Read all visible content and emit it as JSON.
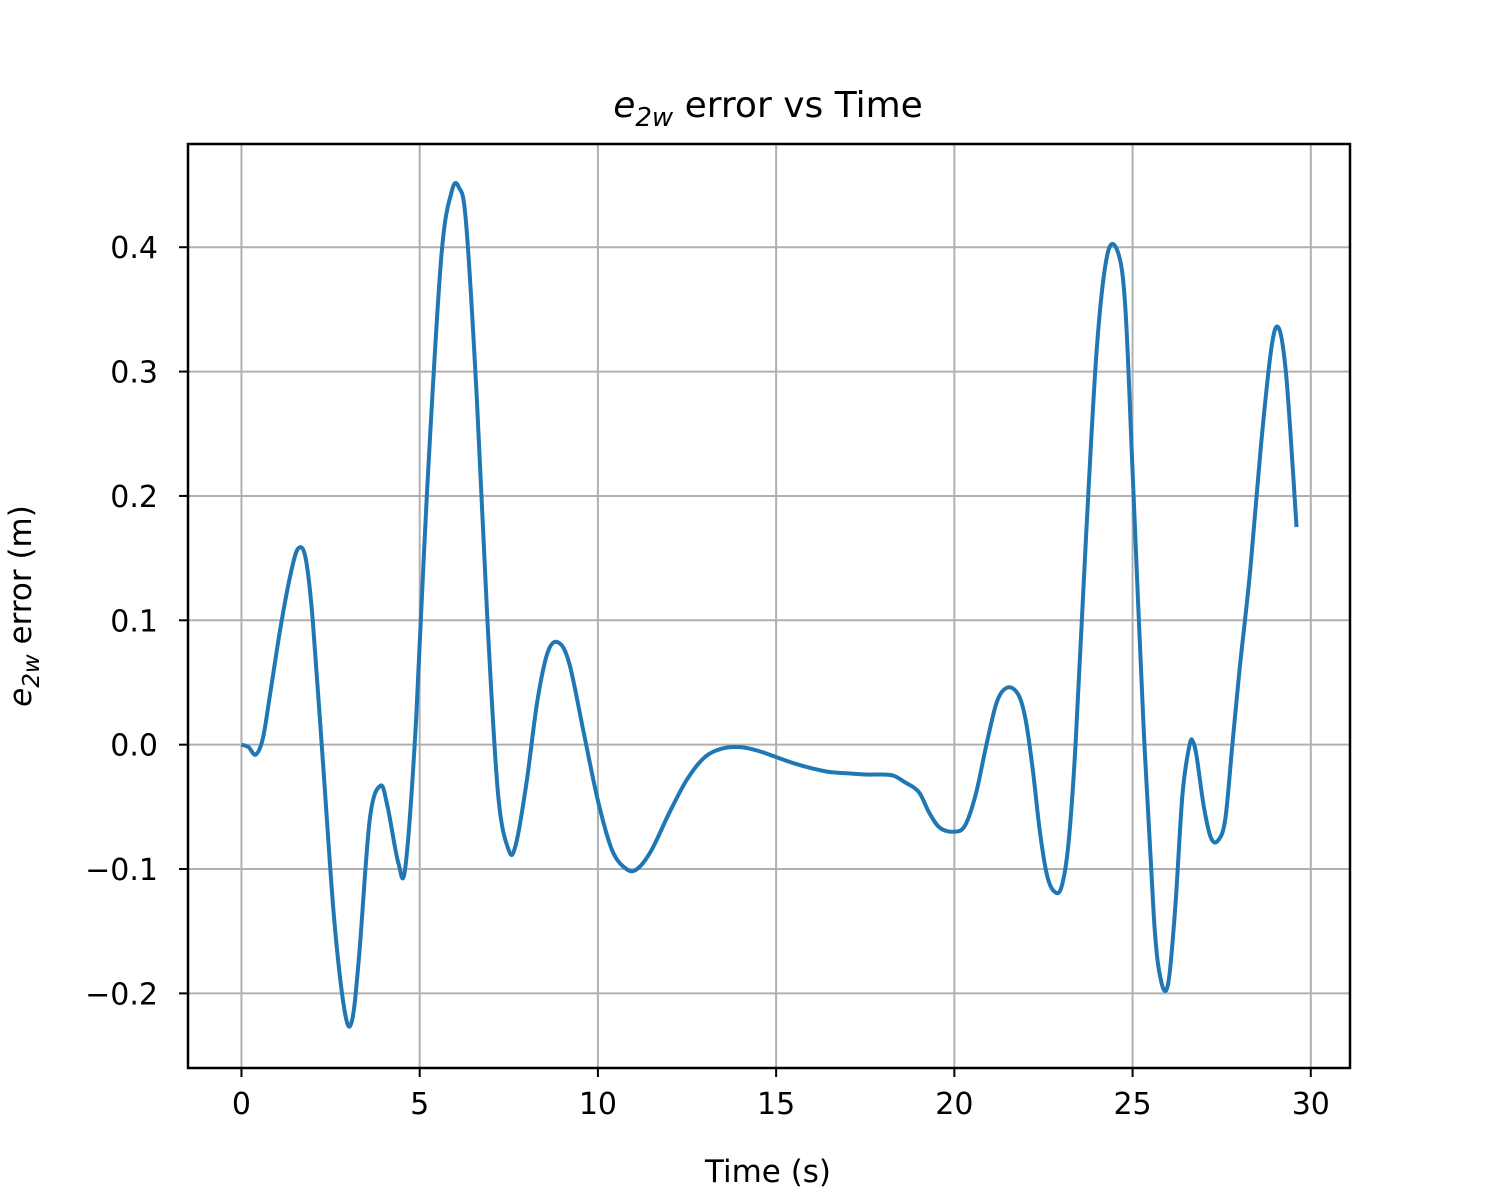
{
  "chart_data": {
    "type": "line",
    "title": {
      "symbol": "e",
      "subscript": "2w",
      "rest": " error vs Time"
    },
    "xlabel": "Time (s)",
    "ylabel": {
      "symbol": "e",
      "subscript": "2w",
      "rest": " error (m)"
    },
    "xlim": [
      -1.5,
      31.1
    ],
    "ylim": [
      -0.26,
      0.483
    ],
    "xticks": [
      0,
      5,
      10,
      15,
      20,
      25,
      30
    ],
    "xtick_labels": [
      "0",
      "5",
      "10",
      "15",
      "20",
      "25",
      "30"
    ],
    "yticks": [
      -0.2,
      -0.1,
      0.0,
      0.1,
      0.2,
      0.3,
      0.4
    ],
    "ytick_labels": [
      "−0.2",
      "−0.1",
      "0.0",
      "0.1",
      "0.2",
      "0.3",
      "0.4"
    ],
    "grid": true,
    "series": [
      {
        "color": "#1f77b4",
        "x": [
          0,
          0.2,
          0.4,
          0.6,
          0.8,
          1.1,
          1.4,
          1.6,
          1.8,
          2.0,
          2.3,
          2.6,
          2.9,
          3.1,
          3.3,
          3.6,
          3.9,
          4.1,
          4.4,
          4.6,
          4.9,
          5.2,
          5.6,
          5.9,
          6.1,
          6.3,
          6.6,
          6.9,
          7.2,
          7.5,
          7.7,
          8.0,
          8.3,
          8.6,
          8.9,
          9.2,
          9.6,
          10.0,
          10.4,
          10.8,
          11.1,
          11.5,
          12.0,
          12.5,
          13.0,
          13.5,
          14.0,
          14.5,
          15.0,
          15.5,
          16.0,
          16.5,
          17.0,
          17.5,
          18.0,
          18.3,
          18.6,
          19.0,
          19.3,
          19.6,
          20.0,
          20.3,
          20.6,
          20.9,
          21.2,
          21.5,
          21.8,
          22.0,
          22.2,
          22.4,
          22.6,
          22.8,
          23.0,
          23.2,
          23.4,
          23.7,
          24.0,
          24.3,
          24.6,
          24.8,
          25.0,
          25.3,
          25.6,
          25.8,
          26.0,
          26.2,
          26.4,
          26.6,
          26.7,
          26.8,
          27.0,
          27.2,
          27.4,
          27.6,
          27.8,
          28.0,
          28.3,
          28.6,
          28.9,
          29.1,
          29.3,
          29.5,
          29.6
        ],
        "y": [
          0.0,
          -0.002,
          -0.008,
          0.005,
          0.04,
          0.095,
          0.14,
          0.158,
          0.15,
          0.1,
          -0.02,
          -0.14,
          -0.215,
          -0.222,
          -0.17,
          -0.06,
          -0.033,
          -0.05,
          -0.095,
          -0.098,
          0.02,
          0.2,
          0.39,
          0.445,
          0.448,
          0.42,
          0.28,
          0.1,
          -0.04,
          -0.085,
          -0.08,
          -0.03,
          0.035,
          0.075,
          0.082,
          0.065,
          0.01,
          -0.045,
          -0.085,
          -0.1,
          -0.1,
          -0.085,
          -0.055,
          -0.028,
          -0.01,
          -0.003,
          -0.002,
          -0.005,
          -0.01,
          -0.015,
          -0.019,
          -0.022,
          -0.023,
          -0.024,
          -0.024,
          -0.025,
          -0.03,
          -0.038,
          -0.055,
          -0.067,
          -0.07,
          -0.065,
          -0.04,
          0.0,
          0.035,
          0.046,
          0.04,
          0.02,
          -0.02,
          -0.07,
          -0.105,
          -0.118,
          -0.115,
          -0.08,
          0.0,
          0.17,
          0.32,
          0.395,
          0.395,
          0.35,
          0.22,
          0.02,
          -0.14,
          -0.19,
          -0.192,
          -0.13,
          -0.04,
          0.0,
          0.002,
          -0.01,
          -0.05,
          -0.075,
          -0.077,
          -0.06,
          0.0,
          0.06,
          0.14,
          0.24,
          0.32,
          0.335,
          0.3,
          0.22,
          0.175
        ]
      }
    ]
  }
}
